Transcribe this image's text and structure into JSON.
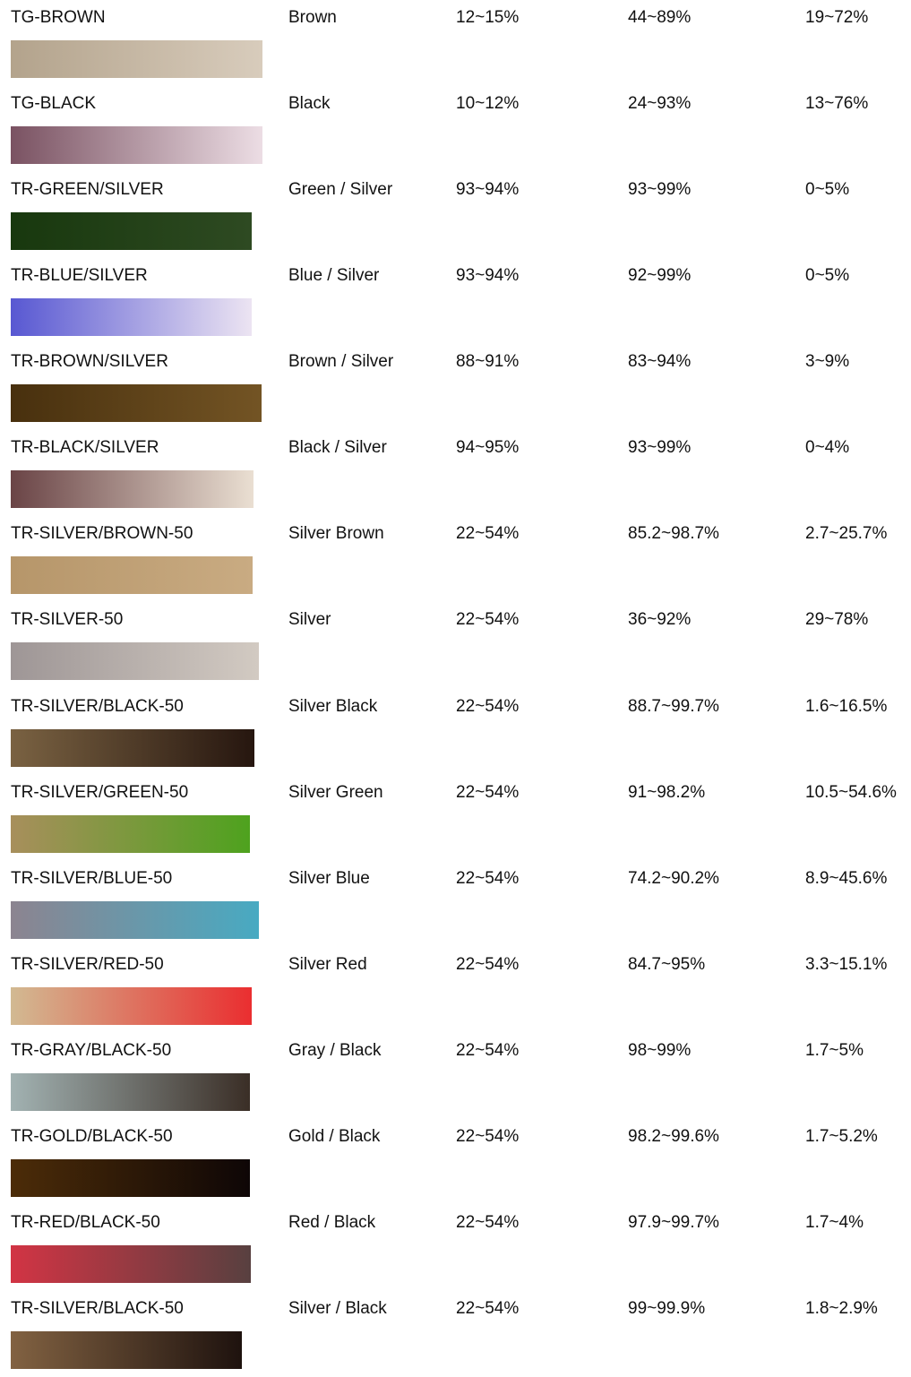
{
  "rows": [
    [
      "TG-BROWN",
      "Brown",
      "12~15%",
      "44~89%",
      "19~72%"
    ],
    [
      "TG-BLACK",
      "Black",
      "10~12%",
      "24~93%",
      "13~76%"
    ],
    [
      "TR-GREEN/SILVER",
      "Green / Silver",
      "93~94%",
      "93~99%",
      "0~5%"
    ],
    [
      "TR-BLUE/SILVER",
      "Blue / Silver",
      "93~94%",
      "92~99%",
      "0~5%"
    ],
    [
      "TR-BROWN/SILVER",
      "Brown / Silver",
      "88~91%",
      "83~94%",
      "3~9%"
    ],
    [
      "TR-BLACK/SILVER",
      "Black / Silver",
      "94~95%",
      "93~99%",
      "0~4%"
    ],
    [
      "TR-SILVER/BROWN-50",
      "Silver Brown",
      "22~54%",
      "85.2~98.7%",
      "2.7~25.7%"
    ],
    [
      "TR-SILVER-50",
      "Silver",
      "22~54%",
      "36~92%",
      "29~78%"
    ],
    [
      "TR-SILVER/BLACK-50",
      "Silver Black",
      "22~54%",
      "88.7~99.7%",
      "1.6~16.5%"
    ],
    [
      "TR-SILVER/GREEN-50",
      "Silver Green",
      "22~54%",
      "91~98.2%",
      "10.5~54.6%"
    ],
    [
      "TR-SILVER/BLUE-50",
      "Silver Blue",
      "22~54%",
      "74.2~90.2%",
      "8.9~45.6%"
    ],
    [
      "TR-SILVER/RED-50",
      "Silver Red",
      "22~54%",
      "84.7~95%",
      "3.3~15.1%"
    ],
    [
      "TR-GRAY/BLACK-50",
      "Gray / Black",
      "22~54%",
      "98~99%",
      "1.7~5%"
    ],
    [
      "TR-GOLD/BLACK-50",
      "Gold / Black",
      "22~54%",
      "98.2~99.6%",
      "1.7~5.2%"
    ],
    [
      "TR-RED/BLACK-50",
      "Red / Black",
      "22~54%",
      "97.9~99.7%",
      "1.7~4%"
    ],
    [
      "TR-SILVER/BLACK-50",
      "Silver / Black",
      "22~54%",
      "99~99.9%",
      "1.8~2.9%"
    ]
  ]
}
